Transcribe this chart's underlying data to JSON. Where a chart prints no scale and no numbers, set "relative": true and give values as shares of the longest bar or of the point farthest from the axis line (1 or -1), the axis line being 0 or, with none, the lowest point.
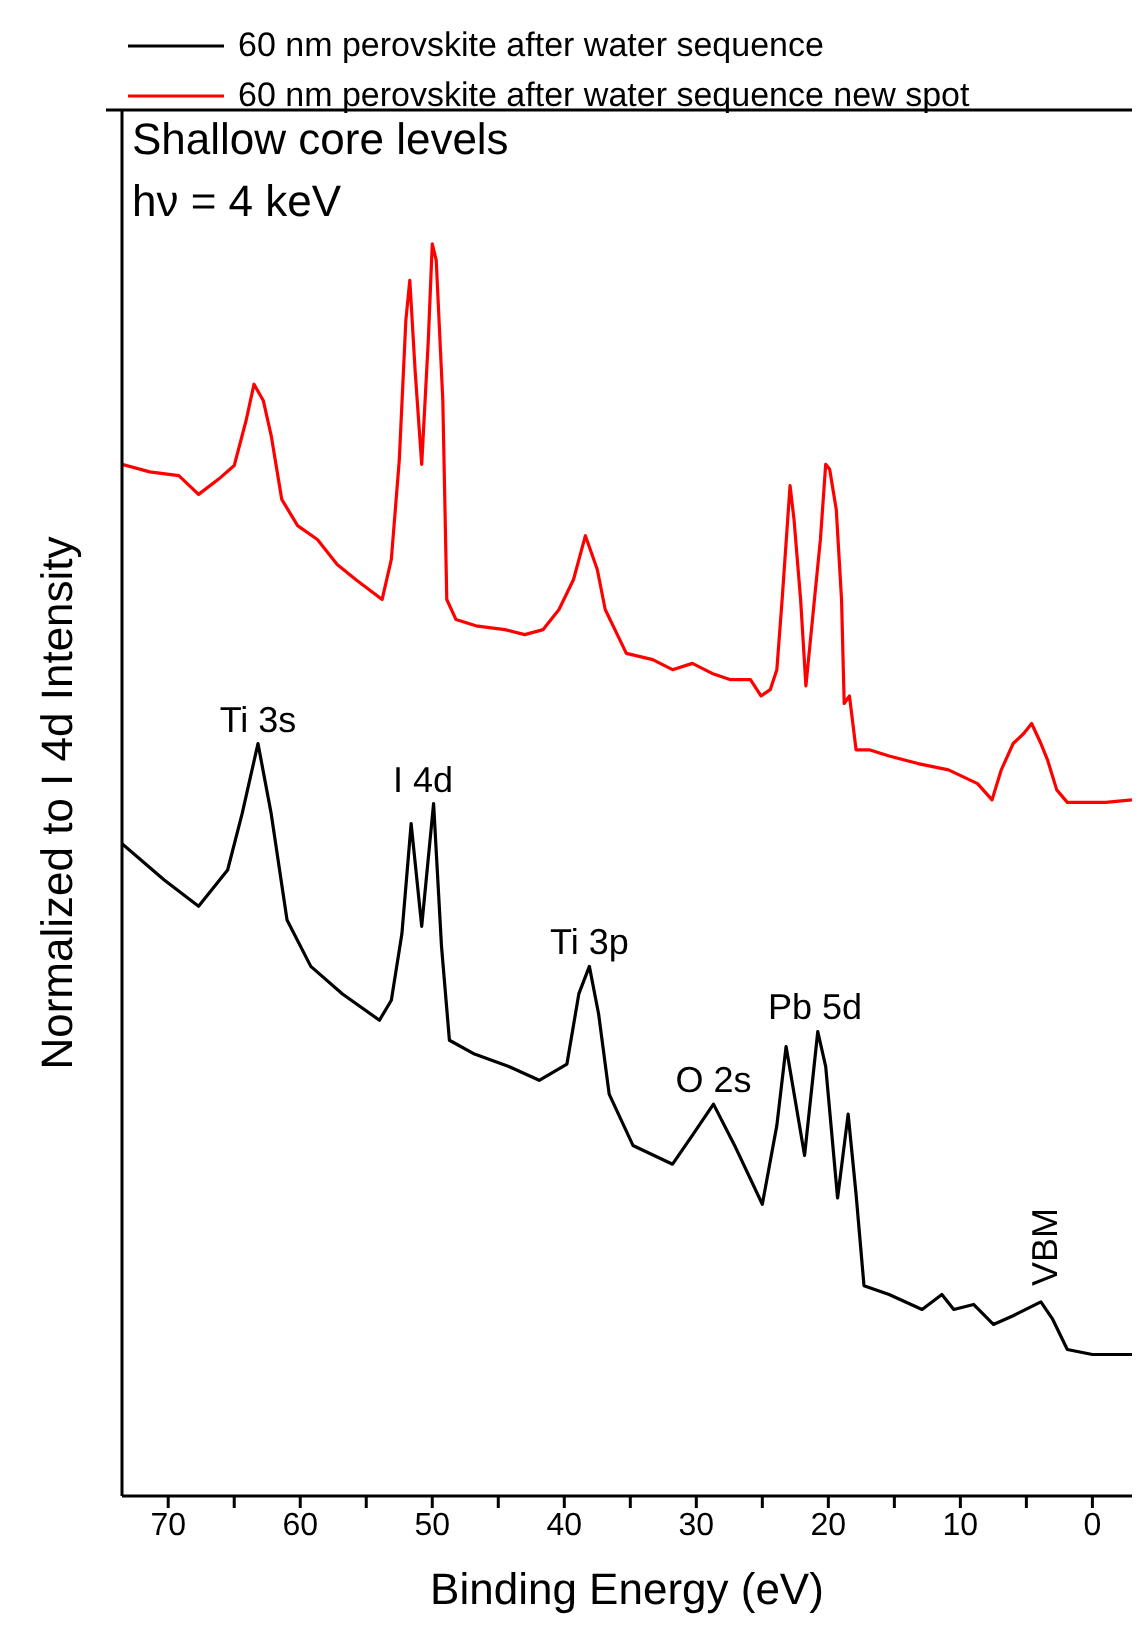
{
  "chart_data": {
    "type": "line",
    "relative": true,
    "xlabel": "Binding Energy (eV)",
    "ylabel": "Normalized to I 4d Intensity",
    "xlim": [
      73.5,
      -3
    ],
    "xticks": [
      70,
      {
        "value": 65,
        "label": null
      },
      60,
      {
        "value": 55,
        "label": null
      },
      50,
      {
        "value": 45,
        "label": null
      },
      40,
      {
        "value": 35,
        "label": null
      },
      30,
      {
        "value": 25,
        "label": null
      },
      20,
      {
        "value": 15,
        "label": null
      },
      10,
      {
        "value": 5,
        "label": null
      },
      0
    ],
    "legend": "top",
    "marker": "none",
    "line_style": "solid",
    "grid": false,
    "annotations": [
      "Shallow core levels",
      "hν = 4 keV",
      {
        "text": "Ti 3s",
        "x": 63.2,
        "y": 0.601
      },
      {
        "text": "I 4d",
        "x": 50.7,
        "y": 0.553
      },
      {
        "text": "Ti 3p",
        "x": 38.1,
        "y": 0.423
      },
      {
        "text": "O 2s",
        "x": 28.7,
        "y": 0.313
      },
      {
        "text": "Pb 5d",
        "x": 21,
        "y": 0.371
      },
      {
        "text": "VBM",
        "x": 3.9,
        "y": 0.155
      }
    ],
    "series": [
      {
        "name": "60 nm perovskite after water sequence",
        "color": "#000000",
        "x": [
          73.5,
          70.3,
          67.7,
          65.5,
          64.4,
          63.2,
          62.2,
          61.0,
          59.2,
          56.8,
          54.0,
          53.1,
          52.3,
          51.6,
          50.8,
          49.9,
          49.3,
          48.7,
          46.8,
          44.2,
          41.9,
          39.8,
          38.9,
          38.1,
          37.4,
          36.6,
          34.8,
          31.8,
          30.3,
          28.7,
          27.1,
          25.0,
          23.9,
          23.2,
          21.8,
          20.8,
          20.2,
          19.3,
          18.5,
          17.9,
          17.3,
          15.4,
          12.9,
          11.4,
          10.5,
          9.0,
          7.5,
          6.0,
          3.9,
          3.0,
          1.9,
          0.0,
          -3.0
        ],
        "values": [
          0.521,
          0.492,
          0.471,
          0.5,
          0.545,
          0.601,
          0.545,
          0.46,
          0.423,
          0.401,
          0.38,
          0.396,
          0.449,
          0.537,
          0.455,
          0.553,
          0.439,
          0.364,
          0.353,
          0.343,
          0.332,
          0.345,
          0.401,
          0.423,
          0.385,
          0.321,
          0.28,
          0.265,
          0.288,
          0.313,
          0.28,
          0.233,
          0.296,
          0.359,
          0.272,
          0.371,
          0.343,
          0.238,
          0.305,
          0.241,
          0.168,
          0.161,
          0.149,
          0.161,
          0.149,
          0.153,
          0.137,
          0.144,
          0.155,
          0.141,
          0.117,
          0.113,
          0.113
        ]
      },
      {
        "name": "60 nm perovskite after water sequence new spot",
        "color": "#ff0000",
        "x": [
          73.5,
          71.4,
          69.2,
          67.7,
          66.2,
          65.0,
          64.1,
          63.5,
          62.8,
          62.2,
          61.4,
          60.2,
          58.7,
          57.2,
          55.8,
          53.8,
          53.1,
          52.5,
          52.0,
          51.7,
          51.3,
          50.8,
          50.3,
          50.0,
          49.7,
          49.2,
          48.9,
          48.2,
          46.7,
          44.5,
          43.0,
          41.6,
          40.4,
          39.3,
          38.4,
          37.5,
          36.9,
          35.3,
          33.3,
          31.8,
          30.3,
          28.8,
          27.4,
          25.9,
          25.1,
          24.4,
          23.9,
          23.5,
          22.9,
          22.6,
          22.1,
          21.7,
          21.1,
          20.6,
          20.2,
          19.9,
          19.4,
          19.0,
          18.8,
          18.4,
          17.9,
          16.9,
          15.4,
          13.2,
          10.9,
          8.7,
          7.6,
          6.9,
          6.0,
          5.2,
          4.6,
          3.9,
          3.4,
          2.7,
          1.9,
          0.4,
          -1.0,
          -3.0
        ],
        "values": [
          0.824,
          0.818,
          0.815,
          0.8,
          0.812,
          0.823,
          0.859,
          0.888,
          0.875,
          0.847,
          0.796,
          0.775,
          0.764,
          0.744,
          0.732,
          0.716,
          0.748,
          0.827,
          0.939,
          0.971,
          0.899,
          0.824,
          0.923,
          1.0,
          0.987,
          0.875,
          0.716,
          0.7,
          0.695,
          0.692,
          0.688,
          0.692,
          0.708,
          0.732,
          0.767,
          0.74,
          0.708,
          0.673,
          0.668,
          0.66,
          0.665,
          0.657,
          0.652,
          0.652,
          0.639,
          0.644,
          0.66,
          0.716,
          0.807,
          0.78,
          0.716,
          0.647,
          0.711,
          0.764,
          0.824,
          0.82,
          0.788,
          0.716,
          0.633,
          0.639,
          0.596,
          0.596,
          0.591,
          0.585,
          0.58,
          0.569,
          0.556,
          0.58,
          0.601,
          0.609,
          0.617,
          0.601,
          0.588,
          0.564,
          0.554,
          0.554,
          0.554,
          0.556
        ]
      }
    ]
  }
}
